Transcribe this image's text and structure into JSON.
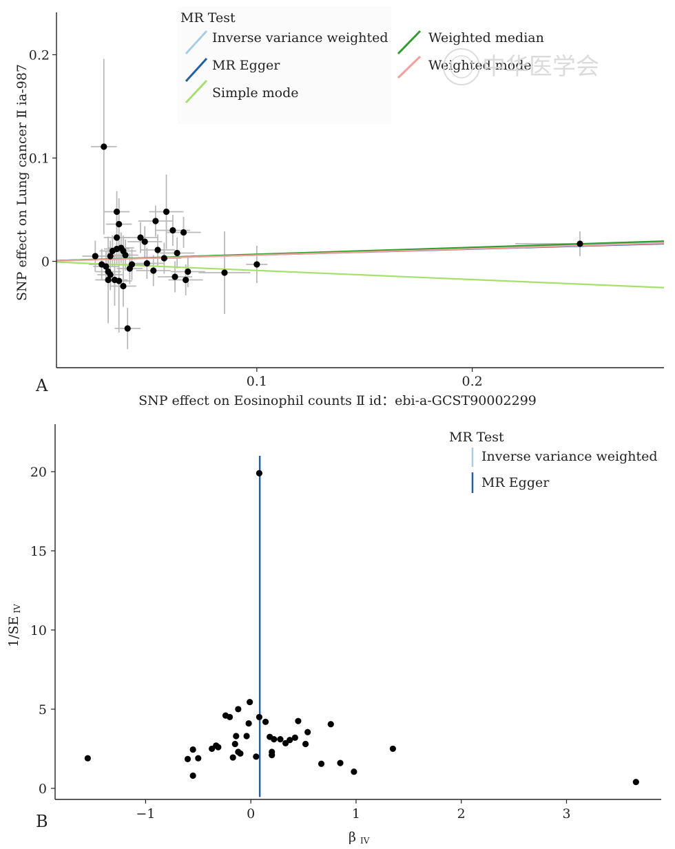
{
  "panel_a": {
    "letter": "A",
    "xlabel": "SNP effect on Eosinophil counts Ⅱ id：ebi-a-GCST90002299",
    "ylabel": "SNP effect on Lung cancer Ⅱ ia-987",
    "legend_title": "MR Test",
    "legend": [
      {
        "label": "Inverse variance weighted",
        "color": "#a6cee3"
      },
      {
        "label": "MR Egger",
        "color": "#1f5fa8"
      },
      {
        "label": "Simple mode",
        "color": "#a6e06b"
      },
      {
        "label": "Weighted median",
        "color": "#2e9e2e"
      },
      {
        "label": "Weighted mode",
        "color": "#f4a09a"
      }
    ],
    "watermark": "中华医学会"
  },
  "panel_b": {
    "letter": "B",
    "xlabel_main": "β",
    "xlabel_sub": "IV",
    "ylabel_main": "1/SE",
    "ylabel_sub": "IV",
    "legend_title": "MR Test",
    "legend": [
      {
        "label": "Inverse variance weighted",
        "color": "#a6cee3"
      },
      {
        "label": "MR Egger",
        "color": "#1f5fa8"
      }
    ]
  },
  "chart_data": [
    {
      "type": "scatter",
      "title": "",
      "xlabel": "SNP effect on Eosinophil counts Ⅱ id：ebi-a-GCST90002299",
      "ylabel": "SNP effect on Lung cancer Ⅱ ia-987",
      "xlim": [
        0.007,
        0.289
      ],
      "ylim": [
        -0.103,
        0.241
      ],
      "xticks": [
        0.1,
        0.2
      ],
      "yticks": [
        0,
        0.1,
        0.2
      ],
      "grid": false,
      "legend_position": "top",
      "points": [
        {
          "x": 0.025,
          "y": 0.005,
          "xerr": 0.006,
          "yerr": 0.015
        },
        {
          "x": 0.029,
          "y": 0.111,
          "xerr": 0.006,
          "yerr": 0.085
        },
        {
          "x": 0.028,
          "y": -0.003,
          "xerr": 0.006,
          "yerr": 0.015
        },
        {
          "x": 0.03,
          "y": -0.005,
          "xerr": 0.006,
          "yerr": 0.015
        },
        {
          "x": 0.031,
          "y": -0.01,
          "xerr": 0.006,
          "yerr": 0.015
        },
        {
          "x": 0.032,
          "y": -0.013,
          "xerr": 0.006,
          "yerr": 0.015
        },
        {
          "x": 0.031,
          "y": -0.018,
          "xerr": 0.006,
          "yerr": 0.042
        },
        {
          "x": 0.032,
          "y": 0.005,
          "xerr": 0.006,
          "yerr": 0.015
        },
        {
          "x": 0.033,
          "y": 0.01,
          "xerr": 0.006,
          "yerr": 0.015
        },
        {
          "x": 0.034,
          "y": -0.018,
          "xerr": 0.006,
          "yerr": 0.025
        },
        {
          "x": 0.035,
          "y": 0.048,
          "xerr": 0.006,
          "yerr": 0.02
        },
        {
          "x": 0.035,
          "y": 0.023,
          "xerr": 0.006,
          "yerr": 0.02
        },
        {
          "x": 0.035,
          "y": 0.012,
          "xerr": 0.006,
          "yerr": 0.015
        },
        {
          "x": 0.036,
          "y": 0.036,
          "xerr": 0.006,
          "yerr": 0.025
        },
        {
          "x": 0.036,
          "y": -0.019,
          "xerr": 0.006,
          "yerr": 0.05
        },
        {
          "x": 0.037,
          "y": 0.013,
          "xerr": 0.006,
          "yerr": 0.015
        },
        {
          "x": 0.038,
          "y": 0.01,
          "xerr": 0.006,
          "yerr": 0.015
        },
        {
          "x": 0.038,
          "y": -0.024,
          "xerr": 0.006,
          "yerr": 0.02
        },
        {
          "x": 0.039,
          "y": 0.006,
          "xerr": 0.006,
          "yerr": 0.015
        },
        {
          "x": 0.04,
          "y": -0.065,
          "xerr": 0.006,
          "yerr": 0.02
        },
        {
          "x": 0.041,
          "y": -0.007,
          "xerr": 0.006,
          "yerr": 0.015
        },
        {
          "x": 0.042,
          "y": -0.003,
          "xerr": 0.006,
          "yerr": 0.015
        },
        {
          "x": 0.046,
          "y": 0.023,
          "xerr": 0.008,
          "yerr": 0.015
        },
        {
          "x": 0.048,
          "y": 0.019,
          "xerr": 0.008,
          "yerr": 0.015
        },
        {
          "x": 0.049,
          "y": -0.002,
          "xerr": 0.008,
          "yerr": 0.015
        },
        {
          "x": 0.052,
          "y": -0.009,
          "xerr": 0.008,
          "yerr": 0.015
        },
        {
          "x": 0.053,
          "y": 0.039,
          "xerr": 0.008,
          "yerr": 0.015
        },
        {
          "x": 0.054,
          "y": 0.011,
          "xerr": 0.008,
          "yerr": 0.015
        },
        {
          "x": 0.057,
          "y": 0.003,
          "xerr": 0.008,
          "yerr": 0.015
        },
        {
          "x": 0.058,
          "y": 0.048,
          "xerr": 0.008,
          "yerr": 0.036
        },
        {
          "x": 0.061,
          "y": 0.03,
          "xerr": 0.008,
          "yerr": 0.015
        },
        {
          "x": 0.062,
          "y": -0.015,
          "xerr": 0.008,
          "yerr": 0.015
        },
        {
          "x": 0.063,
          "y": 0.008,
          "xerr": 0.008,
          "yerr": 0.015
        },
        {
          "x": 0.066,
          "y": 0.028,
          "xerr": 0.008,
          "yerr": 0.015
        },
        {
          "x": 0.067,
          "y": -0.018,
          "xerr": 0.008,
          "yerr": 0.015
        },
        {
          "x": 0.068,
          "y": -0.01,
          "xerr": 0.008,
          "yerr": 0.015
        },
        {
          "x": 0.085,
          "y": -0.011,
          "xerr": 0.012,
          "yerr": 0.04
        },
        {
          "x": 0.1,
          "y": -0.003,
          "xerr": 0.005,
          "yerr": 0.018
        },
        {
          "x": 0.25,
          "y": 0.017,
          "xerr": 0.03,
          "yerr": 0.012
        }
      ],
      "lines": [
        {
          "name": "Inverse variance weighted",
          "x": [
            0.007,
            0.289
          ],
          "y": [
            0.0005,
            0.019
          ],
          "color": "#a6cee3"
        },
        {
          "name": "MR Egger",
          "x": [
            0.007,
            0.289
          ],
          "y": [
            0.0007,
            0.017
          ],
          "color": "#1f5fa8"
        },
        {
          "name": "Simple mode",
          "x": [
            0.007,
            0.289
          ],
          "y": [
            -0.0007,
            -0.0255
          ],
          "color": "#a6e06b"
        },
        {
          "name": "Weighted median",
          "x": [
            0.007,
            0.289
          ],
          "y": [
            0.0006,
            0.0195
          ],
          "color": "#2e9e2e"
        },
        {
          "name": "Weighted mode",
          "x": [
            0.007,
            0.289
          ],
          "y": [
            0.0004,
            0.0175
          ],
          "color": "#f4a09a"
        }
      ]
    },
    {
      "type": "scatter",
      "title": "",
      "xlabel": "β IV",
      "ylabel": "1/SE IV",
      "xlim": [
        -1.86,
        3.9
      ],
      "ylim": [
        -0.7,
        23.0
      ],
      "xticks": [
        -1,
        0,
        1,
        2,
        3
      ],
      "yticks": [
        0,
        5,
        10,
        15,
        20
      ],
      "grid": false,
      "legend_position": "top-right",
      "points": [
        {
          "x": -1.55,
          "y": 1.9
        },
        {
          "x": -0.6,
          "y": 1.85
        },
        {
          "x": -0.55,
          "y": 2.45
        },
        {
          "x": -0.55,
          "y": 0.8
        },
        {
          "x": -0.5,
          "y": 1.9
        },
        {
          "x": -0.37,
          "y": 2.5
        },
        {
          "x": -0.33,
          "y": 2.7
        },
        {
          "x": -0.31,
          "y": 2.6
        },
        {
          "x": -0.24,
          "y": 4.6
        },
        {
          "x": -0.2,
          "y": 4.5
        },
        {
          "x": -0.17,
          "y": 1.95
        },
        {
          "x": -0.15,
          "y": 2.8
        },
        {
          "x": -0.14,
          "y": 3.3
        },
        {
          "x": -0.12,
          "y": 5.0
        },
        {
          "x": -0.12,
          "y": 2.3
        },
        {
          "x": -0.1,
          "y": 2.2
        },
        {
          "x": -0.04,
          "y": 3.3
        },
        {
          "x": -0.02,
          "y": 4.1
        },
        {
          "x": -0.01,
          "y": 5.45
        },
        {
          "x": 0.05,
          "y": 2.0
        },
        {
          "x": 0.08,
          "y": 4.5
        },
        {
          "x": 0.08,
          "y": 19.9
        },
        {
          "x": 0.14,
          "y": 4.2
        },
        {
          "x": 0.18,
          "y": 3.25
        },
        {
          "x": 0.2,
          "y": 2.3
        },
        {
          "x": 0.2,
          "y": 2.1
        },
        {
          "x": 0.22,
          "y": 3.1
        },
        {
          "x": 0.28,
          "y": 3.1
        },
        {
          "x": 0.33,
          "y": 2.85
        },
        {
          "x": 0.37,
          "y": 3.05
        },
        {
          "x": 0.42,
          "y": 3.2
        },
        {
          "x": 0.45,
          "y": 4.25
        },
        {
          "x": 0.52,
          "y": 2.8
        },
        {
          "x": 0.54,
          "y": 3.55
        },
        {
          "x": 0.67,
          "y": 1.55
        },
        {
          "x": 0.76,
          "y": 4.05
        },
        {
          "x": 0.85,
          "y": 1.6
        },
        {
          "x": 0.98,
          "y": 1.05
        },
        {
          "x": 1.35,
          "y": 2.5
        },
        {
          "x": 3.66,
          "y": 0.4
        }
      ],
      "vlines": [
        {
          "name": "Inverse variance weighted",
          "x": 0.085,
          "color": "#a6cee3"
        },
        {
          "name": "MR Egger",
          "x": 0.085,
          "color": "#1f5fa8"
        }
      ]
    }
  ]
}
